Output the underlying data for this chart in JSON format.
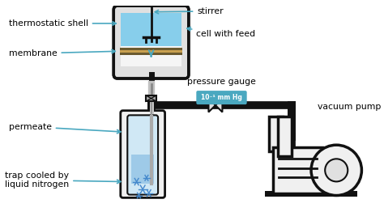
{
  "bg_color": "#ffffff",
  "labels": {
    "thermostatic_shell": "thermostatic shell",
    "membrane": "membrane",
    "stirrer": "stirrer",
    "cell_with_feed": "cell with feed",
    "pressure_gauge": "pressure gauge",
    "pressure_value": "10⁻¹ mm Hg",
    "vacuum_pump": "vacuum pump",
    "permeate": "permeate",
    "trap_cooled": "trap cooled by\nliquid nitrogen"
  },
  "label_color": "#000000",
  "arrow_color": "#4aa8c0",
  "pipe_color": "#111111",
  "cell_fill_top": "#87ceeb",
  "membrane_color": "#c8a050",
  "flask_fill": "#add8e6",
  "pressure_badge_color": "#4aa8c0",
  "pressure_text_color": "#ffffff"
}
